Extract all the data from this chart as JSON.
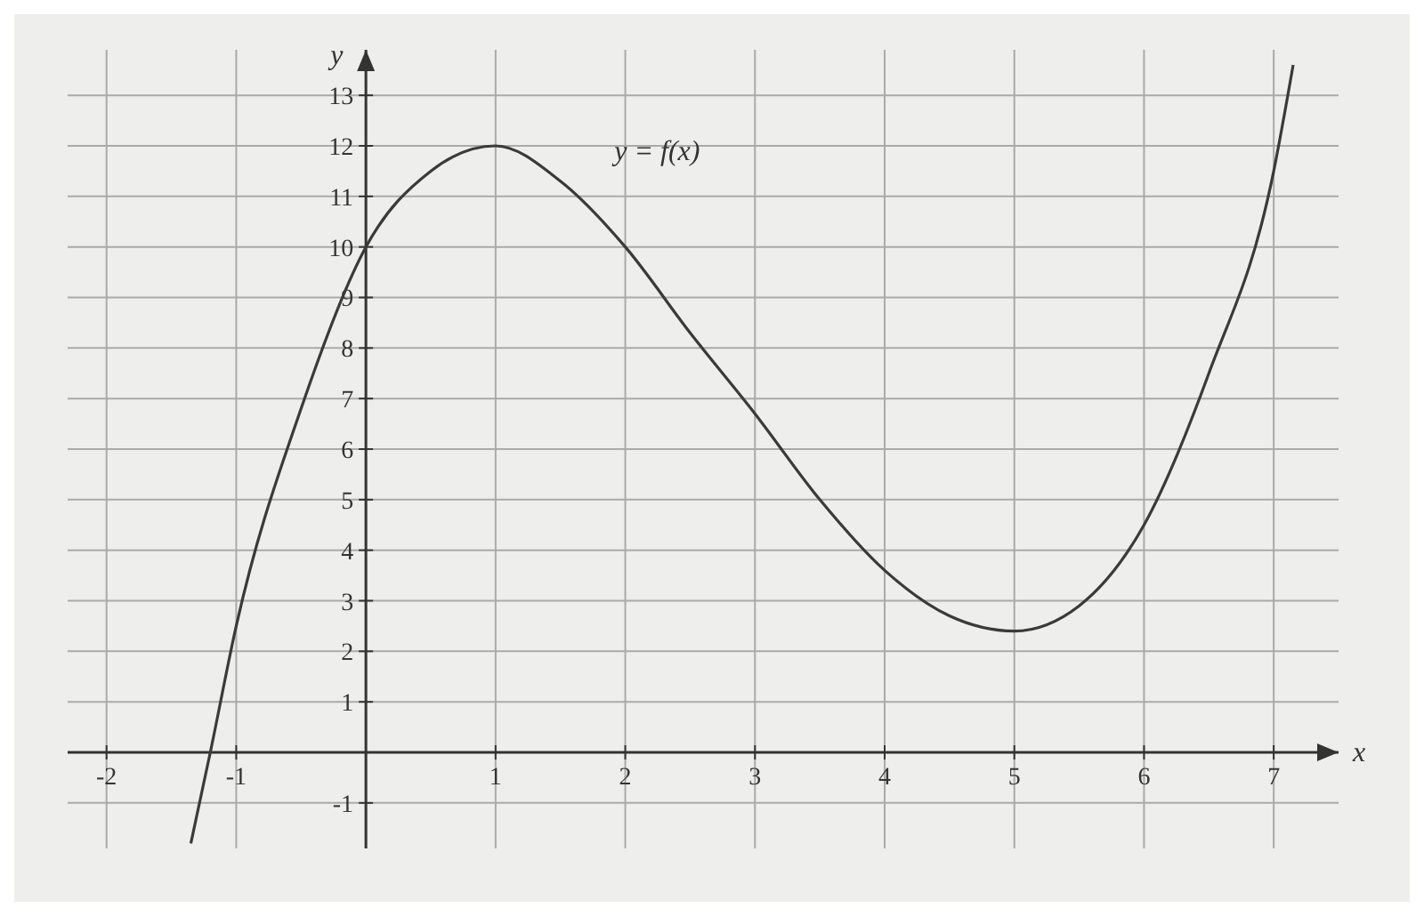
{
  "chart_data": {
    "type": "line",
    "xlabel": "x",
    "ylabel": "y",
    "x": [
      -1.35,
      -1.2,
      -1,
      -0.5,
      0,
      0.5,
      1,
      1.5,
      2,
      2.5,
      3,
      3.5,
      4,
      4.5,
      5,
      5.5,
      6,
      6.5,
      7,
      7.15
    ],
    "series": [
      {
        "color": "#3a3a3a",
        "values": [
          -1.8,
          0,
          2.5,
          6.8,
          10,
          11.5,
          12,
          11.3,
          10,
          8.3,
          6.7,
          5,
          3.6,
          2.7,
          2.4,
          2.9,
          4.5,
          7.5,
          11.5,
          13.6
        ]
      }
    ],
    "xlim": [
      -2.3,
      7.5
    ],
    "ylim": [
      -1.9,
      13.9
    ],
    "xticks": [
      -2,
      -1,
      1,
      2,
      3,
      4,
      5,
      6,
      7
    ],
    "yticks": [
      -1,
      1,
      2,
      3,
      4,
      5,
      6,
      7,
      8,
      9,
      10,
      11,
      12,
      13
    ],
    "grid": true,
    "marker": "none",
    "line_style": "solid",
    "annotations": [
      "y = f(x)"
    ]
  }
}
